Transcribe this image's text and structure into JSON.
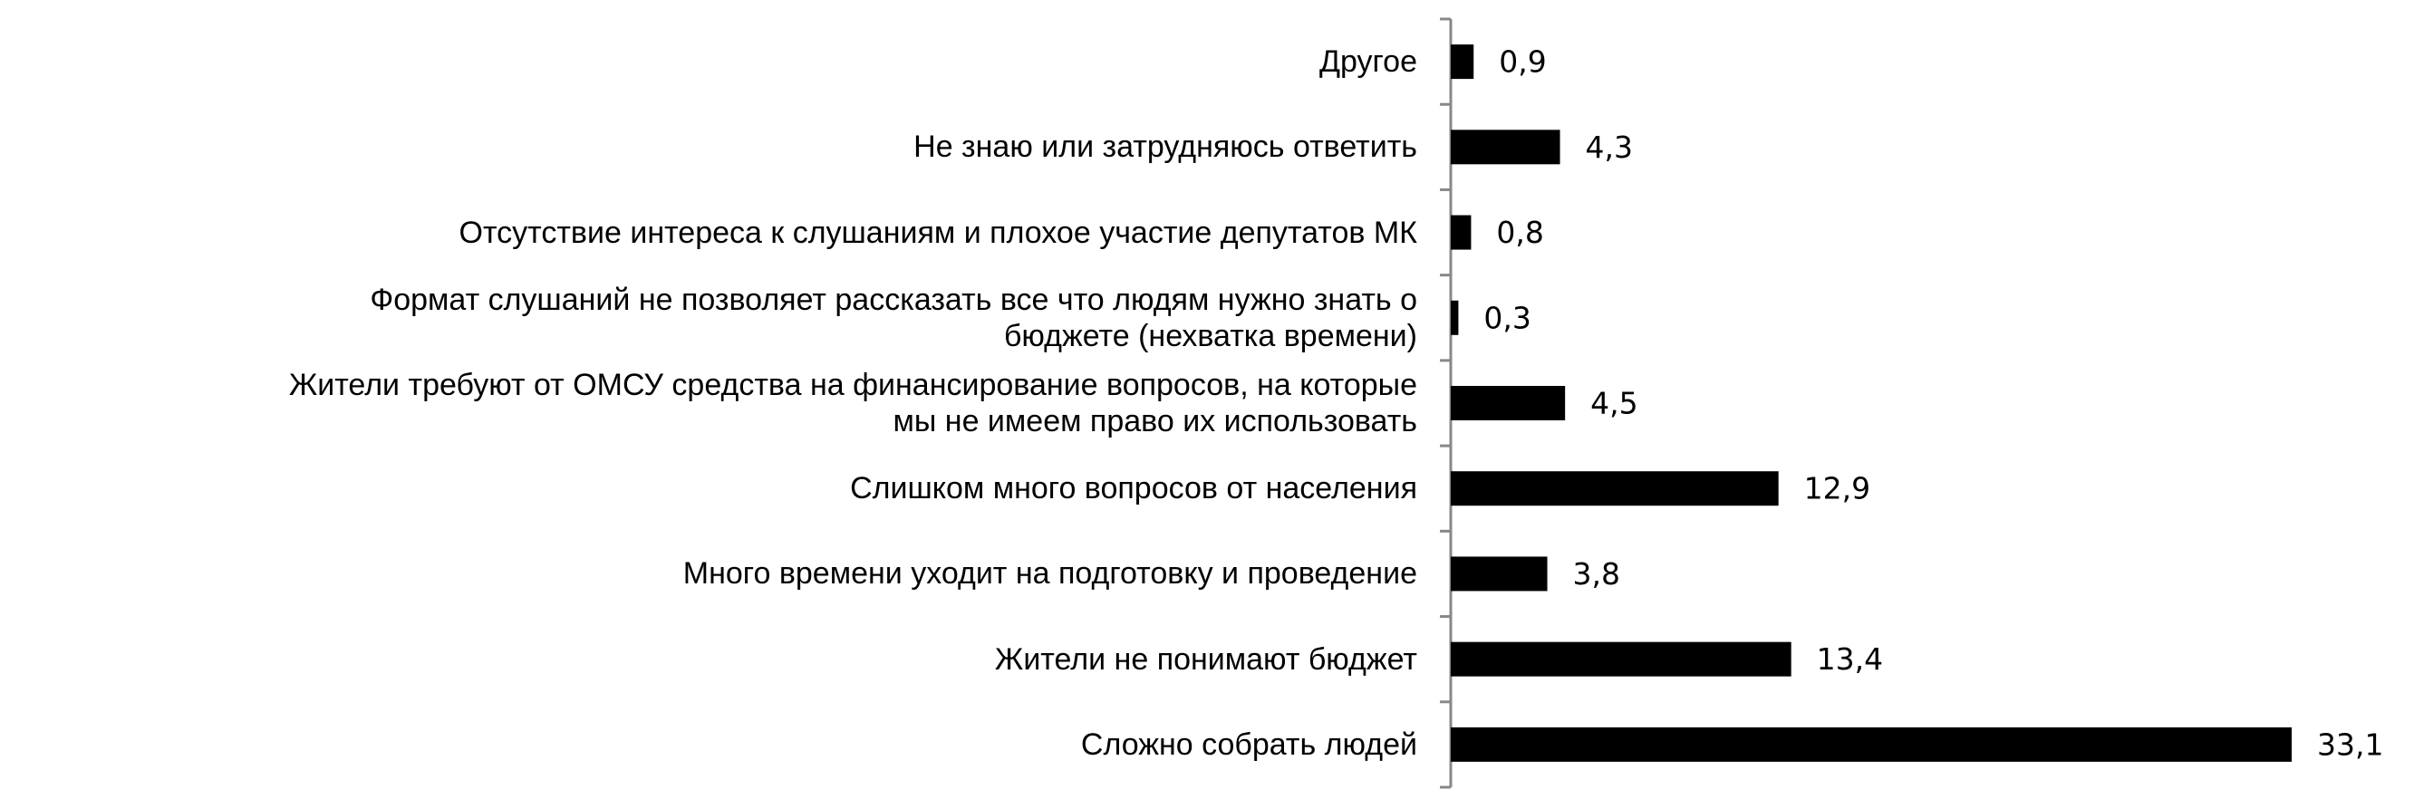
{
  "chart_data": {
    "type": "bar",
    "orientation": "horizontal",
    "color": "#000000",
    "categories": [
      "Другое",
      "Не знаю или затрудняюсь ответить",
      "Отсутствие интереса к слушаниям и плохое участие депутатов МК",
      "Формат слушаний не позволяет рассказать все что людям нужно знать о\nбюджете (нехватка времени)",
      "Жители требуют от ОМСУ средства на финансирование вопросов, на которые\nмы не имеем право их использовать",
      "Слишком много вопросов от населения",
      "Много времени уходит на подготовку и проведение",
      "Жители не понимают бюджет",
      "Сложно собрать людей"
    ],
    "values": [
      0.9,
      4.3,
      0.8,
      0.3,
      4.5,
      12.9,
      3.8,
      13.4,
      33.1
    ],
    "value_labels": [
      "0,9",
      "4,3",
      "0,8",
      "0,3",
      "4,5",
      "12,9",
      "3,8",
      "13,4",
      "33,1"
    ]
  }
}
